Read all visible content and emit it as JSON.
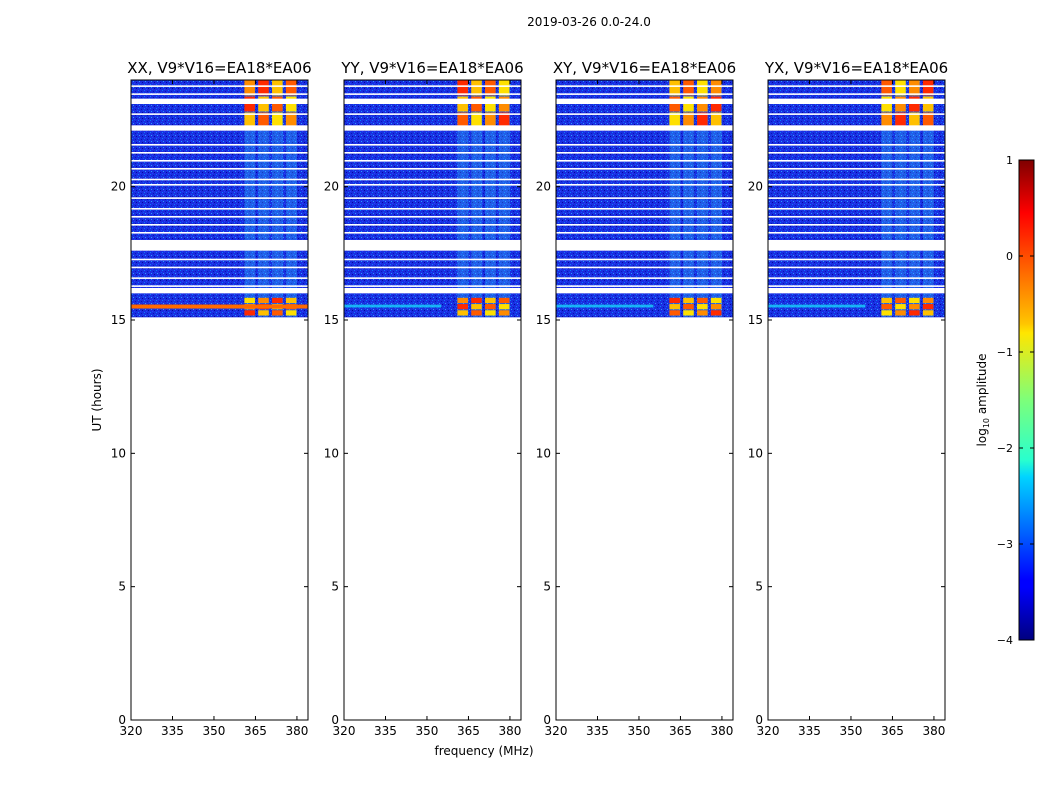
{
  "suptitle": "2019-03-26 0.0-24.0",
  "chart_data": {
    "type": "heatmap",
    "x_ticks": [
      "320",
      "335",
      "350",
      "365",
      "380"
    ],
    "x_tick_values": [
      320,
      335,
      350,
      365,
      380
    ],
    "xlim": [
      320,
      384
    ],
    "y_ticks": [
      "0",
      "5",
      "10",
      "15",
      "20"
    ],
    "y_tick_values": [
      0,
      5,
      10,
      15,
      20
    ],
    "ylim": [
      0,
      24
    ],
    "xlabel": "frequency (MHz)",
    "ylabel": "UT (hours)",
    "data_time_range": [
      15.1,
      24
    ],
    "rfi_bands_MHz": [
      [
        361,
        365
      ],
      [
        366,
        370
      ],
      [
        371,
        375
      ],
      [
        376,
        380
      ]
    ],
    "rfi_active_times_hours": [
      [
        15.15,
        15.85
      ],
      [
        22.2,
        24.0
      ]
    ],
    "flagged_time_gaps_hours": [
      [
        23.1,
        23.3
      ],
      [
        22.1,
        22.3
      ],
      [
        17.6,
        18.0
      ],
      [
        16.0,
        16.2
      ]
    ],
    "panels": [
      {
        "title": "XX, V9*V16=EA18*EA06",
        "polarization": "XX"
      },
      {
        "title": "YY, V9*V16=EA18*EA06",
        "polarization": "YY"
      },
      {
        "title": "XY, V9*V16=EA18*EA06",
        "polarization": "XY"
      },
      {
        "title": "YX, V9*V16=EA18*EA06",
        "polarization": "YX"
      }
    ],
    "colorbar": {
      "label_prefix": "log",
      "label_sub": "10",
      "label_suffix": " amplitude",
      "ticks": [
        "−4",
        "−3",
        "−2",
        "−1",
        "0",
        "1"
      ],
      "tick_values": [
        -4,
        -3,
        -2,
        -1,
        0,
        1
      ],
      "range": [
        -4,
        1
      ],
      "colormap": "jet"
    }
  }
}
